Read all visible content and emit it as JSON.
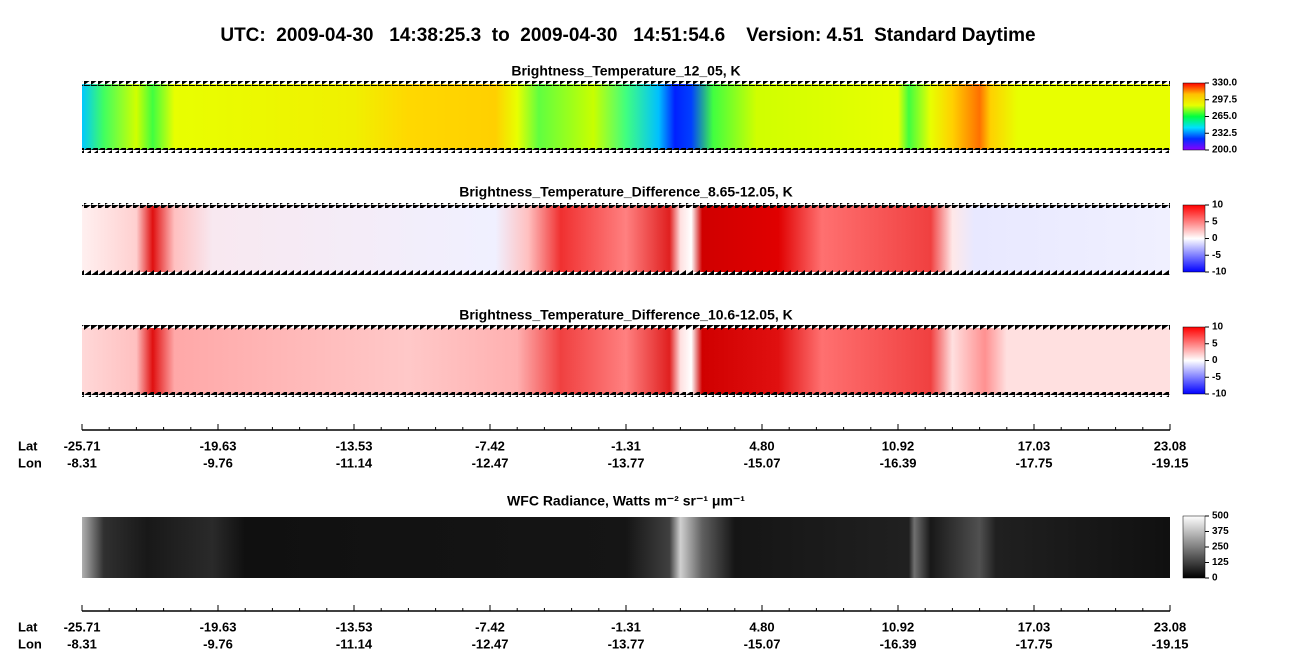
{
  "chart_data": {
    "type": "heatmap",
    "title": "UTC:  2009-04-30   14:38:25.3  to  2009-04-30   14:51:54.6    Version: 4.51  Standard Daytime",
    "panels": [
      {
        "title": "Brightness_Temperature_12_05, K",
        "clim": [
          200,
          330
        ],
        "colorbar_ticks": [
          {
            "value": 200,
            "label": "200.0"
          },
          {
            "value": 232.5,
            "label": "232.5"
          },
          {
            "value": 265,
            "label": "265.0"
          },
          {
            "value": 297.5,
            "label": "297.5"
          },
          {
            "value": 330,
            "label": "330.0"
          }
        ],
        "colors": [
          "#8a00ff",
          "#0030ff",
          "#00e0ff",
          "#00ff40",
          "#e8ff00",
          "#ffc000",
          "#ff0000"
        ]
      },
      {
        "title": "Brightness_Temperature_Difference_8.65-12.05, K",
        "clim": [
          -10,
          10
        ],
        "colorbar_ticks": [
          -10,
          -5,
          0,
          5,
          10
        ],
        "colors": [
          "#0000ff",
          "#ffffff",
          "#ff0000"
        ]
      },
      {
        "title": "Brightness_Temperature_Difference_10.6-12.05, K",
        "clim": [
          -10,
          10
        ],
        "colorbar_ticks": [
          -10,
          -5,
          0,
          5,
          10
        ],
        "colors": [
          "#0000ff",
          "#ffffff",
          "#ff0000"
        ]
      },
      {
        "title": "WFC Radiance, Watts m⁻² sr⁻¹ μm⁻¹",
        "clim": [
          0,
          500
        ],
        "colorbar_ticks": [
          0,
          125,
          250,
          375,
          500
        ],
        "colors": [
          "#000000",
          "#ffffff"
        ]
      }
    ],
    "axes": [
      {
        "lat_label": "Lat",
        "lon_label": "Lon",
        "lat": [
          -25.71,
          -19.63,
          -13.53,
          -7.42,
          -1.31,
          {
            "value": 4.8,
            "label": "4.80"
          },
          10.92,
          17.03,
          23.08
        ],
        "lon": [
          -8.31,
          -9.76,
          -11.14,
          -12.47,
          -13.77,
          -15.07,
          -16.39,
          -17.75,
          -19.15
        ]
      },
      {
        "lat_label": "Lat",
        "lon_label": "Lon",
        "lat": [
          -25.71,
          -19.63,
          -13.53,
          -7.42,
          -1.31,
          {
            "value": 4.8,
            "label": "4.80"
          },
          10.92,
          17.03,
          23.08
        ],
        "lon": [
          -8.31,
          -9.76,
          -11.14,
          -12.47,
          -13.77,
          -15.07,
          -16.39,
          -17.75,
          -19.15
        ]
      }
    ]
  }
}
